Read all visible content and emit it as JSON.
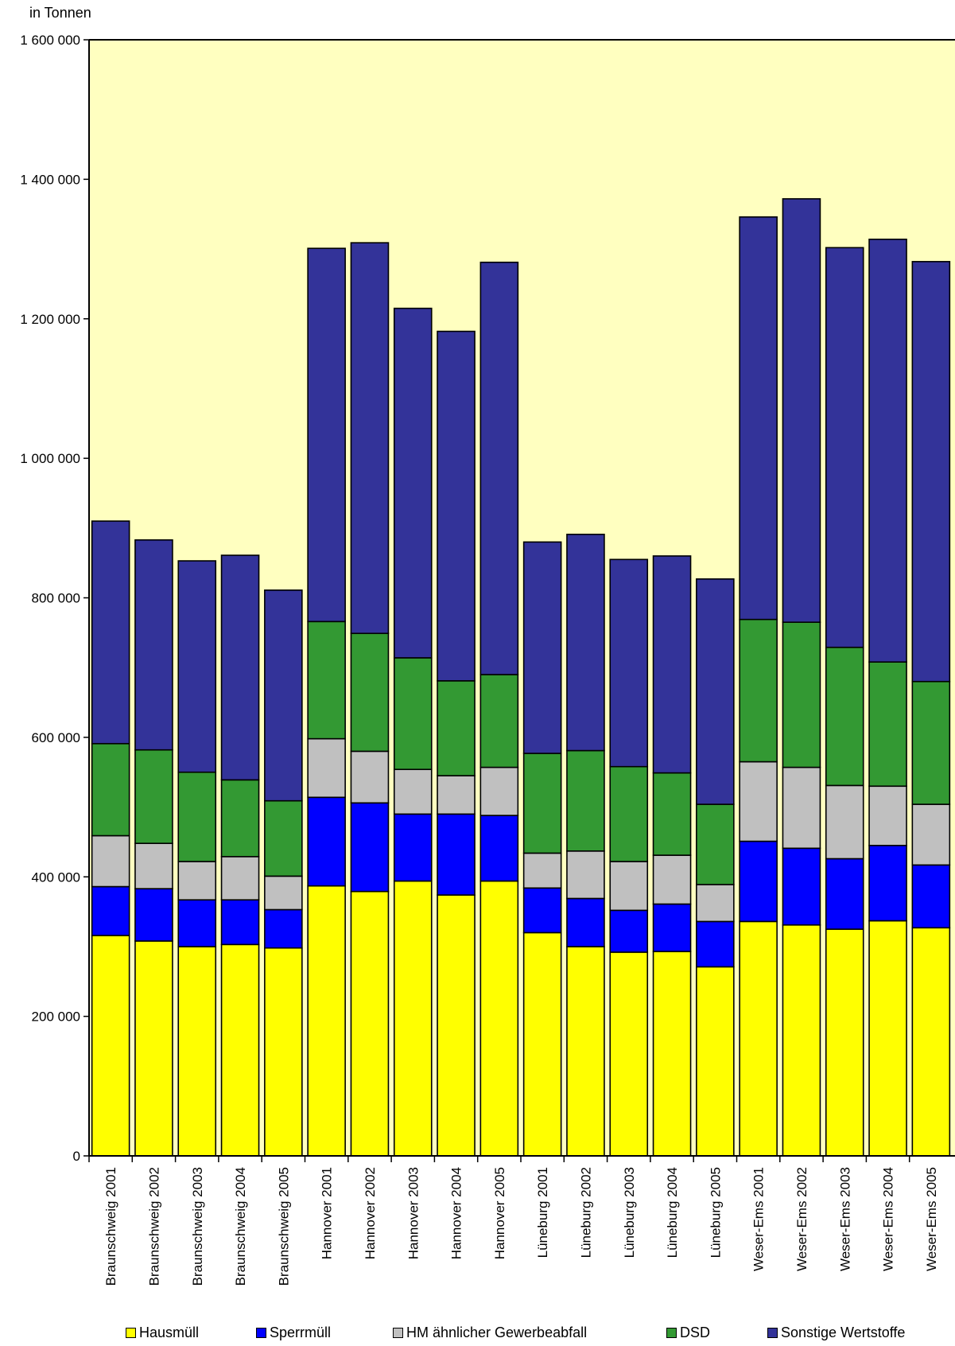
{
  "chart_data": {
    "type": "bar",
    "stacked": true,
    "unit_label": "in Tonnen",
    "ylim": [
      0,
      1600000
    ],
    "yticks": [
      {
        "value": 0,
        "label": "0"
      },
      {
        "value": 200000,
        "label": "200 000"
      },
      {
        "value": 400000,
        "label": "400 000"
      },
      {
        "value": 600000,
        "label": "600 000"
      },
      {
        "value": 800000,
        "label": "800 000"
      },
      {
        "value": 1000000,
        "label": "1 000 000"
      },
      {
        "value": 1200000,
        "label": "1 200 000"
      },
      {
        "value": 1400000,
        "label": "1 400 000"
      },
      {
        "value": 1600000,
        "label": "1 600 000"
      }
    ],
    "plot_background": "#ffffc0",
    "legend_position": "bottom",
    "categories": [
      "Braunschweig 2001",
      "Braunschweig 2002",
      "Braunschweig 2003",
      "Braunschweig 2004",
      "Braunschweig 2005",
      "Hannover 2001",
      "Hannover 2002",
      "Hannover 2003",
      "Hannover 2004",
      "Hannover 2005",
      "Lüneburg 2001",
      "Lüneburg 2002",
      "Lüneburg 2003",
      "Lüneburg 2004",
      "Lüneburg 2005",
      "Weser-Ems 2001",
      "Weser-Ems 2002",
      "Weser-Ems 2003",
      "Weser-Ems 2004",
      "Weser-Ems 2005"
    ],
    "series": [
      {
        "name": "Hausmüll",
        "color": "#ffff00",
        "values": [
          316000,
          308000,
          300000,
          303000,
          298000,
          387000,
          379000,
          394000,
          374000,
          394000,
          320000,
          300000,
          292000,
          293000,
          271000,
          336000,
          331000,
          325000,
          337000,
          327000
        ]
      },
      {
        "name": "Sperrmüll",
        "color": "#0000ff",
        "values": [
          70000,
          75000,
          67000,
          64000,
          55000,
          127000,
          127000,
          96000,
          116000,
          94000,
          64000,
          69000,
          60000,
          68000,
          65000,
          115000,
          110000,
          101000,
          108000,
          90000
        ]
      },
      {
        "name": "HM ähnlicher Gewerbeabfall",
        "color": "#c0c0c0",
        "values": [
          73000,
          65000,
          55000,
          62000,
          48000,
          84000,
          74000,
          64000,
          55000,
          69000,
          50000,
          68000,
          70000,
          70000,
          53000,
          114000,
          116000,
          105000,
          85000,
          87000
        ]
      },
      {
        "name": "DSD",
        "color": "#339933",
        "values": [
          132000,
          134000,
          128000,
          110000,
          108000,
          168000,
          169000,
          160000,
          136000,
          133000,
          143000,
          144000,
          136000,
          118000,
          115000,
          204000,
          208000,
          198000,
          178000,
          176000
        ]
      },
      {
        "name": "Sonstige Wertstoffe",
        "color": "#333399",
        "values": [
          319000,
          301000,
          303000,
          322000,
          302000,
          535000,
          560000,
          501000,
          501000,
          591000,
          303000,
          310000,
          297000,
          311000,
          323000,
          577000,
          607000,
          573000,
          606000,
          602000
        ]
      }
    ]
  }
}
